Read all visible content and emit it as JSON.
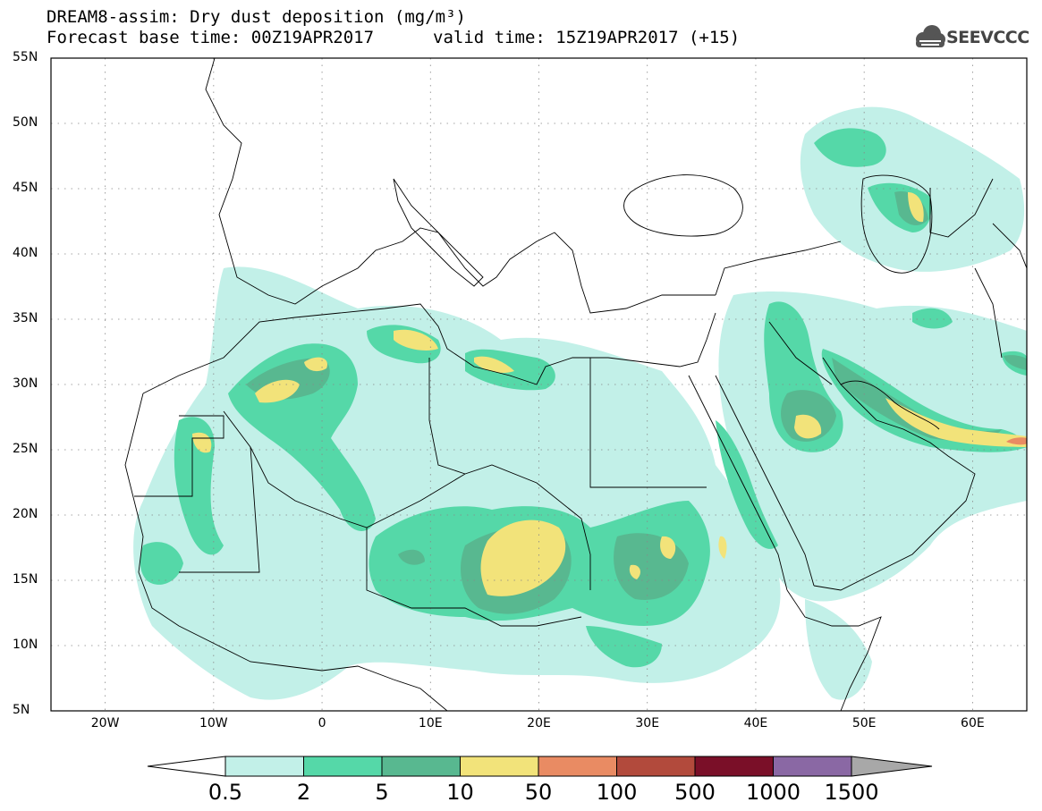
{
  "header": {
    "title": "DREAM8-assim: Dry dust deposition (mg/m³)",
    "base_time": "Forecast base time: 00Z19APR2017",
    "valid_time": "valid time: 15Z19APR2017 (+15)"
  },
  "logo": {
    "text": "SEEVCCC",
    "icon": "cloud-icon"
  },
  "map": {
    "projection": "lat-lon",
    "lon_range": [
      -25,
      65
    ],
    "lat_range": [
      5,
      55
    ],
    "lat_ticks": [
      "55N",
      "50N",
      "45N",
      "40N",
      "35N",
      "30N",
      "25N",
      "20N",
      "15N",
      "10N",
      "5N"
    ],
    "lon_ticks": [
      "20W",
      "10W",
      "0",
      "10E",
      "20E",
      "30E",
      "40E",
      "50E",
      "60E"
    ],
    "gridlines": "dotted"
  },
  "colorbar": {
    "labels": [
      "0.5",
      "2",
      "5",
      "10",
      "50",
      "100",
      "500",
      "1000",
      "1500"
    ],
    "colors": [
      "#c2f0e8",
      "#55d8a8",
      "#58b890",
      "#f2e37a",
      "#e98b63",
      "#b24a3c",
      "#7a0f28",
      "#8a68a4",
      "#a8a8a8"
    ],
    "under_color": "#ffffff",
    "over_color": "#a8a8a8"
  }
}
